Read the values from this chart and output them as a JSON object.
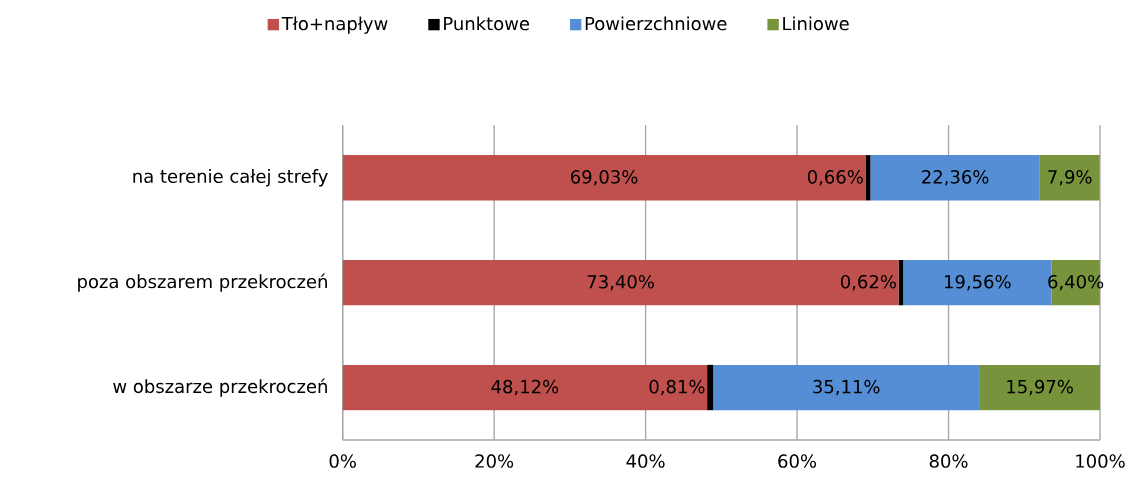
{
  "chart_data": {
    "type": "bar",
    "orientation": "horizontal",
    "stacked": true,
    "categories": [
      "na terenie całej strefy",
      "poza obszarem przekroczeń",
      "w obszarze przekroczeń"
    ],
    "series": [
      {
        "name": "Tło+napływ",
        "color": "#c0504d",
        "values": [
          69.03,
          73.4,
          48.12
        ],
        "value_labels": [
          "69,03%",
          "73,40%",
          "48,12%"
        ]
      },
      {
        "name": "Punktowe",
        "color": "#000000",
        "values": [
          0.66,
          0.62,
          0.81
        ],
        "value_labels": [
          "0,66%",
          "0,62%",
          "0,81%"
        ]
      },
      {
        "name": "Powierzchniowe",
        "color": "#558ed5",
        "values": [
          22.36,
          19.56,
          35.11
        ],
        "value_labels": [
          "22,36%",
          "19,56%",
          "35,11%"
        ]
      },
      {
        "name": "Liniowe",
        "color": "#77933c",
        "values": [
          7.9,
          6.4,
          15.97
        ],
        "value_labels": [
          "7,9%",
          "6,40%",
          "15,97%"
        ]
      }
    ],
    "xlim": [
      0,
      100
    ],
    "xticks": [
      {
        "value": 0,
        "label": "0%"
      },
      {
        "value": 20,
        "label": "20%"
      },
      {
        "value": 40,
        "label": "40%"
      },
      {
        "value": 60,
        "label": "60%"
      },
      {
        "value": 80,
        "label": "80%"
      },
      {
        "value": 100,
        "label": "100%"
      }
    ],
    "grid": "x",
    "legend": "top"
  }
}
